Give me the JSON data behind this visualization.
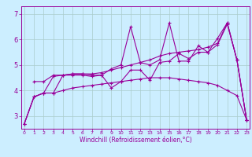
{
  "title": "",
  "xlabel": "Windchill (Refroidissement éolien,°C)",
  "bg_color": "#cceeff",
  "line_color": "#990099",
  "grid_color": "#aacccc",
  "x_ticks": [
    0,
    1,
    2,
    3,
    4,
    5,
    6,
    7,
    8,
    9,
    10,
    11,
    12,
    13,
    14,
    15,
    16,
    17,
    18,
    19,
    20,
    21,
    22,
    23
  ],
  "y_ticks": [
    3,
    4,
    5,
    6,
    7
  ],
  "ylim": [
    2.5,
    7.3
  ],
  "xlim": [
    -0.3,
    23.3
  ],
  "curve1_x": [
    0,
    1,
    2,
    3,
    4,
    5,
    6,
    7,
    8,
    9,
    10,
    11,
    12,
    13,
    14,
    15,
    16,
    17,
    18,
    19,
    20,
    21,
    22,
    23
  ],
  "curve1_y": [
    2.7,
    3.75,
    3.9,
    4.55,
    4.6,
    4.65,
    4.65,
    4.65,
    4.7,
    4.8,
    4.9,
    5.0,
    5.1,
    5.2,
    5.35,
    5.45,
    5.5,
    5.55,
    5.6,
    5.7,
    5.85,
    6.65,
    5.2,
    2.85
  ],
  "curve2_x": [
    0,
    1,
    2,
    3,
    4,
    5,
    6,
    7,
    8,
    9,
    10,
    11,
    12,
    13,
    14,
    15,
    16,
    17,
    18,
    19,
    20,
    21,
    22,
    23
  ],
  "curve2_y": [
    2.7,
    3.75,
    3.9,
    3.9,
    4.0,
    4.1,
    4.15,
    4.2,
    4.25,
    4.3,
    4.35,
    4.4,
    4.45,
    4.5,
    4.5,
    4.5,
    4.45,
    4.4,
    4.35,
    4.3,
    4.2,
    4.0,
    3.8,
    2.85
  ],
  "curve3_x": [
    0,
    1,
    2,
    3,
    4,
    5,
    6,
    7,
    8,
    9,
    10,
    11,
    12,
    13,
    14,
    15,
    16,
    17,
    18,
    19,
    20,
    21,
    22,
    23
  ],
  "curve3_y": [
    2.7,
    3.75,
    3.9,
    3.9,
    4.6,
    4.6,
    4.6,
    4.55,
    4.6,
    4.1,
    4.35,
    4.8,
    4.8,
    4.4,
    5.1,
    5.15,
    5.45,
    5.25,
    5.5,
    5.5,
    5.8,
    6.6,
    5.2,
    2.85
  ],
  "curve4_x": [
    1,
    2,
    3,
    4,
    5,
    6,
    7,
    8,
    9,
    10,
    11,
    12,
    13,
    14,
    15,
    16,
    17,
    18,
    19,
    20,
    21,
    22,
    23
  ],
  "curve4_y": [
    4.35,
    4.35,
    4.6,
    4.6,
    4.65,
    4.65,
    4.6,
    4.6,
    4.85,
    5.0,
    6.5,
    5.1,
    5.0,
    5.2,
    6.65,
    5.15,
    5.15,
    5.75,
    5.5,
    6.05,
    6.65,
    5.2,
    2.85
  ]
}
